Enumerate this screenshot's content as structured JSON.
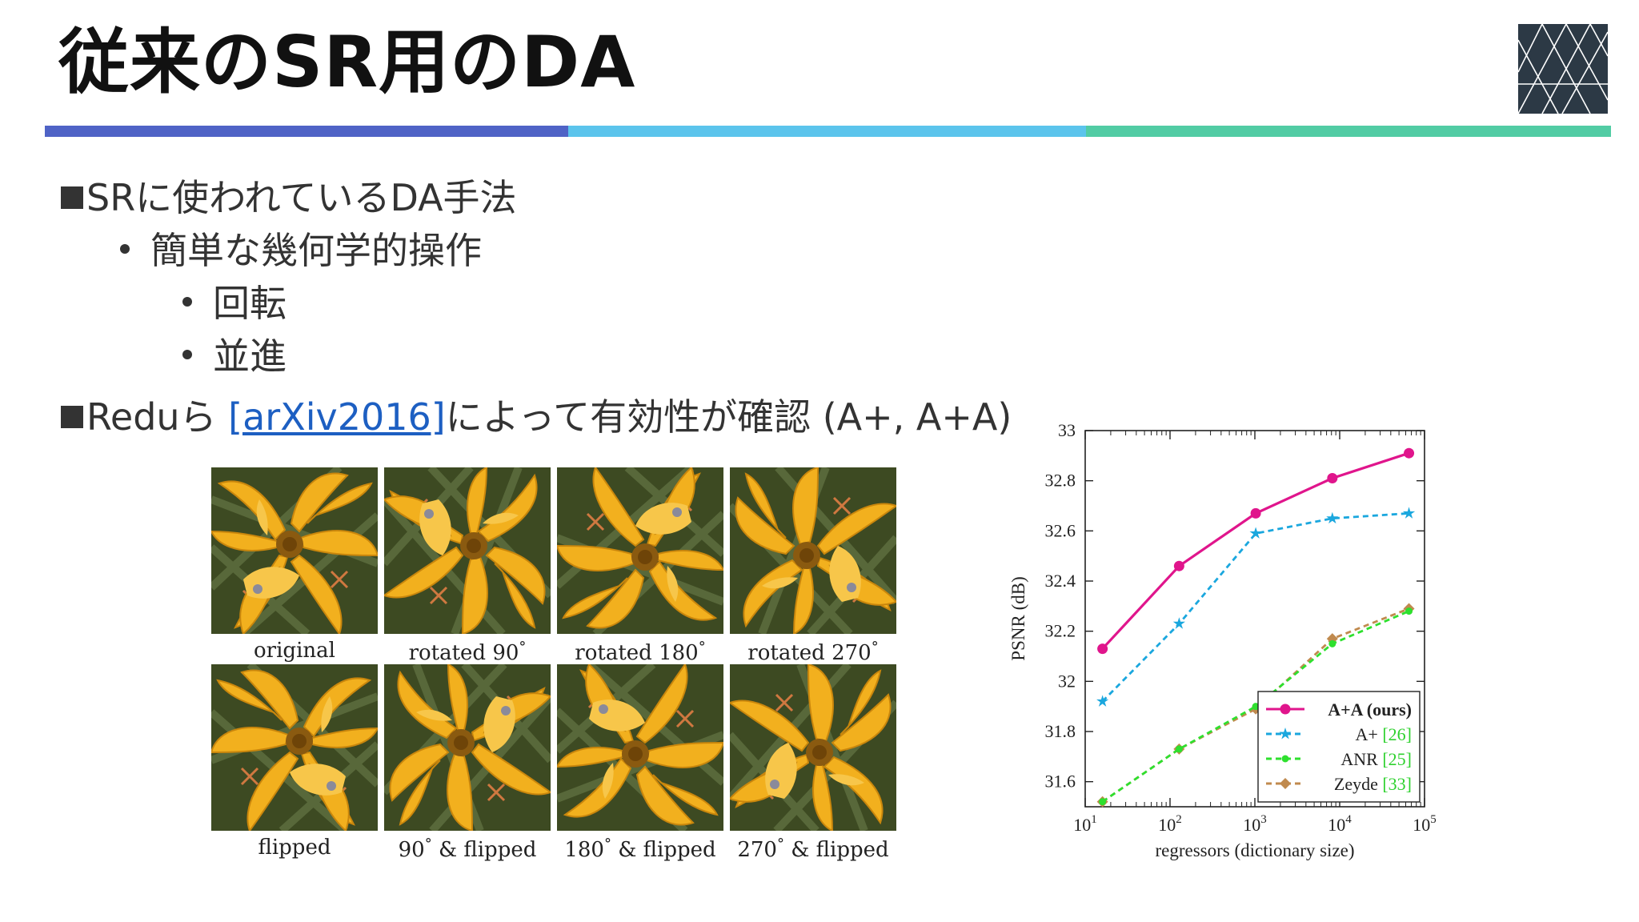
{
  "slide": {
    "title": "従来のSR用のDA"
  },
  "bullets": {
    "b1": "SRに使われているDA手法",
    "b1_1": "簡単な幾何学的操作",
    "b1_1_1": "回転",
    "b1_1_2": "並進",
    "b2_prefix": "Reduら ",
    "b2_link": "[arXiv2016]",
    "b2_suffix": "によって有効性が確認 (A+, A+A)"
  },
  "figure": {
    "captions": {
      "original": "original",
      "r90": "rotated 90",
      "r180": "rotated 180",
      "r270": "rotated 270",
      "flipped": "flipped",
      "f90": "90",
      "f180": "180",
      "f270": "270",
      "deg": "°",
      "amp_flipped": " & flipped"
    }
  },
  "chart_data": {
    "type": "line",
    "xlabel": "regressors (dictionary size)",
    "ylabel": "PSNR (dB)",
    "x_scale": "log",
    "xlim": [
      10,
      100000
    ],
    "ylim": [
      31.5,
      33
    ],
    "x_ticks": [
      {
        "base": "10",
        "exp": "1",
        "value": 10
      },
      {
        "base": "10",
        "exp": "2",
        "value": 100
      },
      {
        "base": "10",
        "exp": "3",
        "value": 1000
      },
      {
        "base": "10",
        "exp": "4",
        "value": 10000
      },
      {
        "base": "10",
        "exp": "5",
        "value": 100000
      }
    ],
    "y_ticks": [
      "31.6",
      "31.8",
      "32",
      "32.2",
      "32.4",
      "32.6",
      "32.8",
      "33"
    ],
    "x": [
      16,
      128,
      1024,
      8192,
      65536
    ],
    "series": [
      {
        "name": "A+A (ours)",
        "ref": "",
        "color": "#e0158c",
        "dash": "none",
        "marker": "circle",
        "values": [
          32.13,
          32.46,
          32.67,
          32.81,
          32.91
        ]
      },
      {
        "name": "A+ ",
        "ref": "[26]",
        "color": "#1aa7de",
        "dash": "dashed",
        "marker": "star",
        "values": [
          31.92,
          32.23,
          32.59,
          32.65,
          32.67
        ]
      },
      {
        "name": "ANR ",
        "ref": "[25]",
        "color": "#2ee02e",
        "dash": "dashed",
        "marker": "dot",
        "values": [
          31.52,
          31.73,
          31.9,
          32.15,
          32.28
        ]
      },
      {
        "name": "Zeyde ",
        "ref": "[33]",
        "color": "#c08a4e",
        "dash": "dashed",
        "marker": "diamond",
        "values": [
          31.52,
          31.73,
          31.89,
          32.17,
          32.29
        ]
      }
    ],
    "legend": "bottom-right",
    "colors": {
      "axis": "#222222",
      "ref": "#2ed12e"
    }
  }
}
